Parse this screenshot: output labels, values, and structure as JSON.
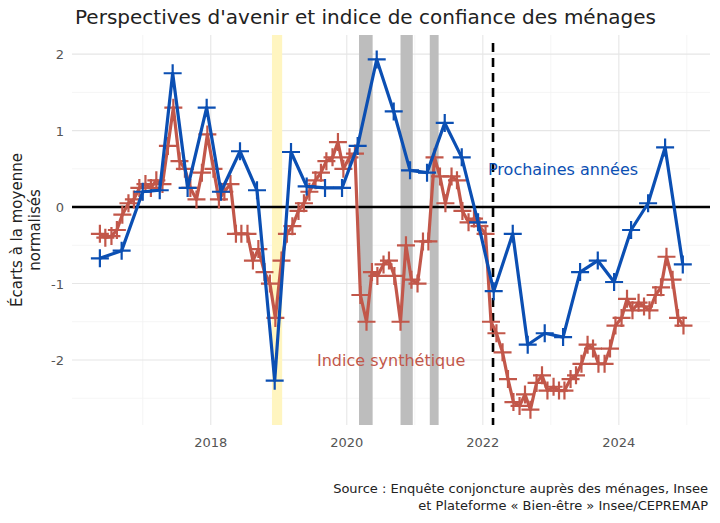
{
  "chart_data": {
    "type": "line",
    "title": "Perspectives d'avenir et indice de confiance des ménages",
    "y_label": "Écarts à la moyenne normalisés",
    "source": [
      "Source : Enquête conjoncture auprès des ménages, Insee",
      "et Plateforme « Bien-être » Insee/CEPREMAP"
    ],
    "xlim": [
      2015.96,
      2025.34
    ],
    "xticks": [
      2018,
      2020,
      2022,
      2024
    ],
    "ylim": [
      -2.85,
      2.25
    ],
    "yticks": [
      -2,
      -1,
      0,
      1,
      2
    ],
    "grid": true,
    "reference_line": 0,
    "vertical_line": {
      "x": 2022.15,
      "line_style": "dashed"
    },
    "shaded_periods": [
      {
        "start": 2018.9,
        "end": 2019.05,
        "color": "#fff5c0"
      },
      {
        "start": 2020.18,
        "end": 2020.38,
        "color": "#bdbdbd"
      },
      {
        "start": 2020.79,
        "end": 2020.97,
        "color": "#bdbdbd"
      },
      {
        "start": 2021.22,
        "end": 2021.35,
        "color": "#bdbdbd"
      }
    ],
    "series": [
      {
        "name": "Indice synthétique",
        "color": "#c2574a",
        "marker": "plus",
        "line_style": "solid",
        "x": [
          2016.37,
          2016.45,
          2016.54,
          2016.62,
          2016.7,
          2016.79,
          2016.87,
          2016.95,
          2017.04,
          2017.12,
          2017.2,
          2017.29,
          2017.37,
          2017.45,
          2017.54,
          2017.62,
          2017.7,
          2017.79,
          2017.87,
          2017.95,
          2018.04,
          2018.12,
          2018.2,
          2018.29,
          2018.37,
          2018.45,
          2018.54,
          2018.62,
          2018.7,
          2018.79,
          2018.87,
          2018.95,
          2019.04,
          2019.12,
          2019.2,
          2019.29,
          2019.37,
          2019.45,
          2019.54,
          2019.62,
          2019.7,
          2019.79,
          2019.87,
          2019.95,
          2020.04,
          2020.12,
          2020.2,
          2020.29,
          2020.37,
          2020.45,
          2020.54,
          2020.62,
          2020.7,
          2020.79,
          2020.87,
          2020.95,
          2021.04,
          2021.12,
          2021.2,
          2021.29,
          2021.37,
          2021.45,
          2021.54,
          2021.62,
          2021.7,
          2021.79,
          2021.87,
          2021.95,
          2022.04,
          2022.12,
          2022.2,
          2022.29,
          2022.37,
          2022.45,
          2022.54,
          2022.62,
          2022.7,
          2022.79,
          2022.87,
          2022.95,
          2023.04,
          2023.12,
          2023.2,
          2023.29,
          2023.37,
          2023.45,
          2023.54,
          2023.62,
          2023.7,
          2023.79,
          2023.87,
          2023.95,
          2024.04,
          2024.12,
          2024.2,
          2024.29,
          2024.37,
          2024.45,
          2024.54,
          2024.62,
          2024.7,
          2024.79,
          2024.87,
          2024.95
        ],
        "values": [
          -0.35,
          -0.4,
          -0.38,
          -0.3,
          -0.1,
          0.05,
          0.1,
          0.25,
          0.3,
          0.25,
          0.35,
          0.3,
          0.8,
          1.3,
          0.6,
          0.5,
          0.25,
          0.1,
          0.45,
          0.95,
          0.5,
          0.1,
          0.2,
          0.3,
          -0.35,
          -0.35,
          -0.35,
          -0.7,
          -0.55,
          -0.85,
          -1.0,
          -1.45,
          -0.7,
          -0.35,
          -0.25,
          -0.05,
          0.05,
          0.2,
          0.35,
          0.45,
          0.6,
          0.65,
          0.85,
          0.5,
          0.65,
          0.7,
          -1.15,
          -1.5,
          -0.85,
          -0.9,
          -0.75,
          -0.7,
          -0.9,
          -1.5,
          -0.5,
          -0.95,
          -1.0,
          -0.45,
          -0.45,
          0.65,
          0.4,
          0.05,
          0.4,
          0.35,
          -0.05,
          -0.2,
          -0.15,
          -0.25,
          -0.35,
          -1.5,
          -1.65,
          -1.9,
          -2.25,
          -2.55,
          -2.6,
          -2.45,
          -2.65,
          -2.3,
          -2.2,
          -2.4,
          -2.35,
          -2.4,
          -2.4,
          -2.25,
          -2.2,
          -2.05,
          -1.8,
          -1.85,
          -2.05,
          -2.05,
          -1.85,
          -1.55,
          -1.45,
          -1.2,
          -1.35,
          -1.25,
          -1.3,
          -1.35,
          -1.15,
          -1.05,
          -0.65,
          -0.95,
          -1.45,
          -1.55
        ]
      },
      {
        "name": "Prochaines années",
        "color": "#0b4fb3",
        "marker": "plus",
        "line_style": "solid",
        "x": [
          2016.37,
          2016.69,
          2017.0,
          2017.25,
          2017.44,
          2017.66,
          2017.94,
          2018.15,
          2018.43,
          2018.68,
          2018.94,
          2019.18,
          2019.41,
          2019.68,
          2019.93,
          2020.16,
          2020.44,
          2020.69,
          2020.93,
          2021.18,
          2021.44,
          2021.69,
          2021.93,
          2022.16,
          2022.44,
          2022.66,
          2022.91,
          2023.18,
          2023.43,
          2023.69,
          2023.93,
          2024.18,
          2024.43,
          2024.68,
          2024.94
        ],
        "values": [
          -0.67,
          -0.57,
          0.2,
          0.22,
          1.75,
          0.25,
          1.3,
          0.2,
          0.73,
          0.22,
          -2.27,
          0.72,
          0.27,
          0.25,
          0.25,
          0.8,
          1.93,
          1.25,
          0.48,
          0.45,
          1.1,
          0.65,
          -0.2,
          -1.1,
          -0.35,
          -1.8,
          -1.65,
          -1.7,
          -0.85,
          -0.7,
          -0.98,
          -0.3,
          0.05,
          0.78,
          -0.75
        ]
      }
    ]
  }
}
